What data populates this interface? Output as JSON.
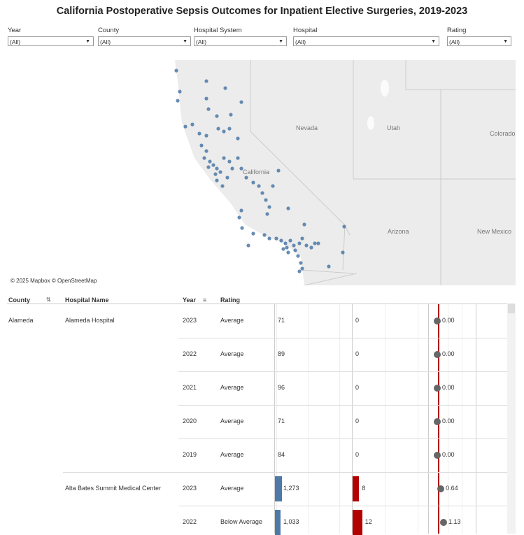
{
  "title": "California Postoperative Sepsis Outcomes for Inpatient Elective Surgeries, 2019-2023",
  "filters": [
    {
      "label": "Year",
      "value": "(All)"
    },
    {
      "label": "County",
      "value": "(All)"
    },
    {
      "label": "Hospital System",
      "value": "(All)"
    },
    {
      "label": "Hospital",
      "value": "(All)"
    },
    {
      "label": "Rating",
      "value": "(All)"
    }
  ],
  "map": {
    "attribution": "© 2025 Mapbox © OpenStreetMap",
    "labels": [
      "Nevada",
      "Utah",
      "Colorado",
      "California",
      "Arizona",
      "New Mexico"
    ],
    "marker_color": "#4e79a7"
  },
  "table": {
    "headers": {
      "county": "County",
      "hospital": "Hospital Name",
      "year": "Year",
      "rating": "Rating"
    },
    "rows": [
      {
        "county": "Alameda",
        "hospital": "Alameda Hospital",
        "year": "2023",
        "rating": "Average",
        "cases": "71",
        "sepsis": "0",
        "rate": "0.00"
      },
      {
        "county": "",
        "hospital": "",
        "year": "2022",
        "rating": "Average",
        "cases": "89",
        "sepsis": "0",
        "rate": "0.00"
      },
      {
        "county": "",
        "hospital": "",
        "year": "2021",
        "rating": "Average",
        "cases": "96",
        "sepsis": "0",
        "rate": "0.00"
      },
      {
        "county": "",
        "hospital": "",
        "year": "2020",
        "rating": "Average",
        "cases": "71",
        "sepsis": "0",
        "rate": "0.00"
      },
      {
        "county": "",
        "hospital": "",
        "year": "2019",
        "rating": "Average",
        "cases": "84",
        "sepsis": "0",
        "rate": "0.00"
      },
      {
        "county": "",
        "hospital": "Alta Bates Summit Medical Center",
        "year": "2023",
        "rating": "Average",
        "cases": "1,273",
        "sepsis": "8",
        "rate": "0.64"
      },
      {
        "county": "",
        "hospital": "",
        "year": "2022",
        "rating": "Below Average",
        "cases": "1,033",
        "sepsis": "12",
        "rate": "1.13"
      }
    ]
  },
  "colors": {
    "bar_cases": "#4e79a7",
    "bar_sepsis": "#b30000",
    "ref_line": "#b30000",
    "dot": "#666666"
  }
}
